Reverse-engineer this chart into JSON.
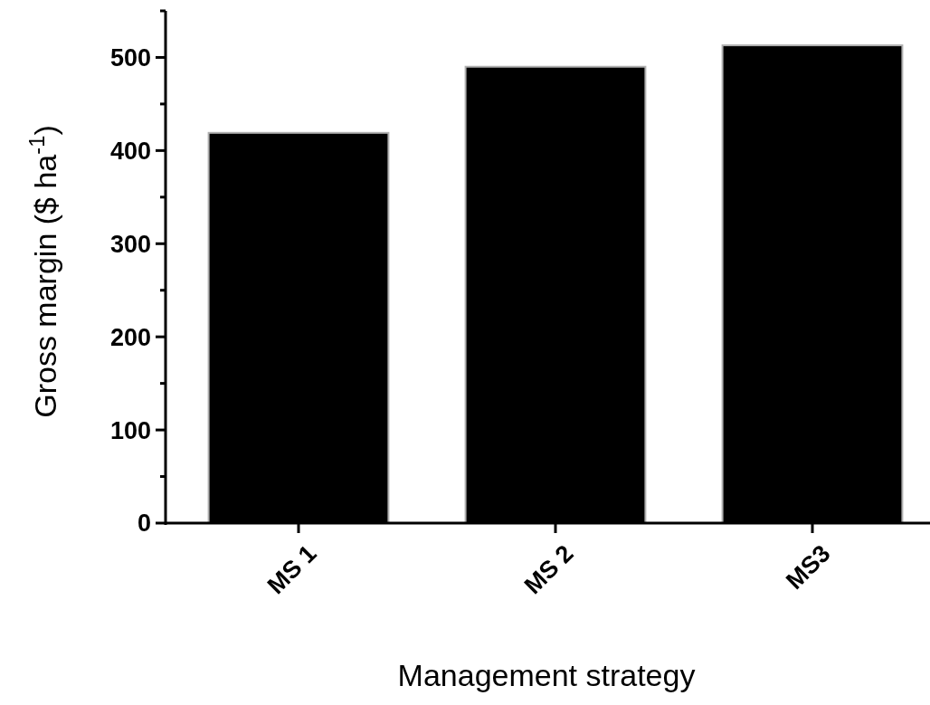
{
  "chart_data": {
    "type": "bar",
    "xlabel": "Management strategy",
    "ylabel": "Gross margin ($ ha$^{-1}$)",
    "categories": [
      "MS 1",
      "MS 2",
      "MS3"
    ],
    "values": [
      419,
      490,
      513
    ],
    "color": "#000000",
    "ylim": [
      0,
      550
    ],
    "yticks": [
      0,
      {
        "value": 50,
        "label": null
      },
      100,
      {
        "value": 150,
        "label": null
      },
      200,
      {
        "value": 250,
        "label": null
      },
      300,
      {
        "value": 350,
        "label": null
      },
      400,
      {
        "value": 450,
        "label": null
      },
      500,
      {
        "value": 550,
        "label": null
      }
    ]
  }
}
